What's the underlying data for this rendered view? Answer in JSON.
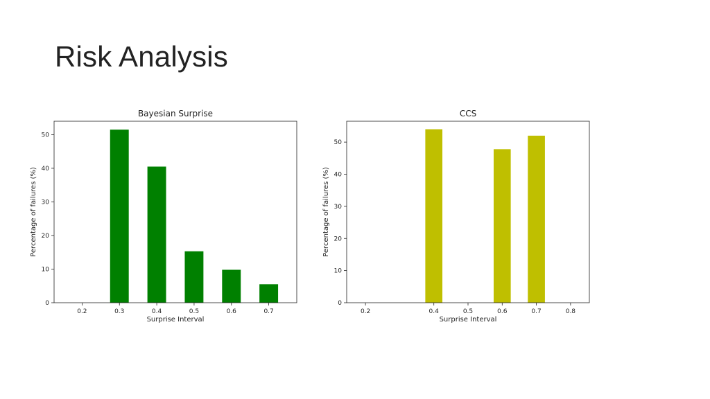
{
  "slide": {
    "title": "Risk Analysis"
  },
  "chart_data": [
    {
      "type": "bar",
      "title": "Bayesian Surprise",
      "xlabel": "Surprise Interval",
      "ylabel": "Percentage of failures (%)",
      "categories": [
        "0.3",
        "0.4",
        "0.5",
        "0.6",
        "0.7"
      ],
      "x": [
        0.3,
        0.4,
        0.5,
        0.6,
        0.7
      ],
      "values": [
        51.5,
        40.5,
        15.3,
        9.8,
        5.5
      ],
      "xticks": [
        "0.2",
        "0.3",
        "0.4",
        "0.5",
        "0.6",
        "0.7"
      ],
      "xtick_values": [
        0.2,
        0.3,
        0.4,
        0.5,
        0.6,
        0.7
      ],
      "yticks": [
        "0",
        "10",
        "20",
        "30",
        "40",
        "50"
      ],
      "ytick_values": [
        0,
        10,
        20,
        30,
        40,
        50
      ],
      "xlim": [
        0.125,
        0.775
      ],
      "ylim": [
        0,
        54
      ],
      "bar_width": 0.05,
      "color": "#008000",
      "grid": false,
      "legend": "none"
    },
    {
      "type": "bar",
      "title": "CCS",
      "xlabel": "Surprise Interval",
      "ylabel": "Percentage of failures (%)",
      "categories": [
        "0.4",
        "0.6",
        "0.7"
      ],
      "x": [
        0.4,
        0.6,
        0.7
      ],
      "values": [
        54.0,
        47.8,
        52.0
      ],
      "xticks": [
        "0.2",
        "0.4",
        "0.5",
        "0.6",
        "0.7",
        "0.8"
      ],
      "xtick_values": [
        0.2,
        0.4,
        0.5,
        0.6,
        0.7,
        0.8
      ],
      "yticks": [
        "0",
        "10",
        "20",
        "30",
        "40",
        "50"
      ],
      "ytick_values": [
        0,
        10,
        20,
        30,
        40,
        50
      ],
      "xlim": [
        0.145,
        0.855
      ],
      "ylim": [
        0,
        56.5
      ],
      "bar_width": 0.05,
      "color": "#bfbf00",
      "grid": false,
      "legend": "none"
    }
  ]
}
